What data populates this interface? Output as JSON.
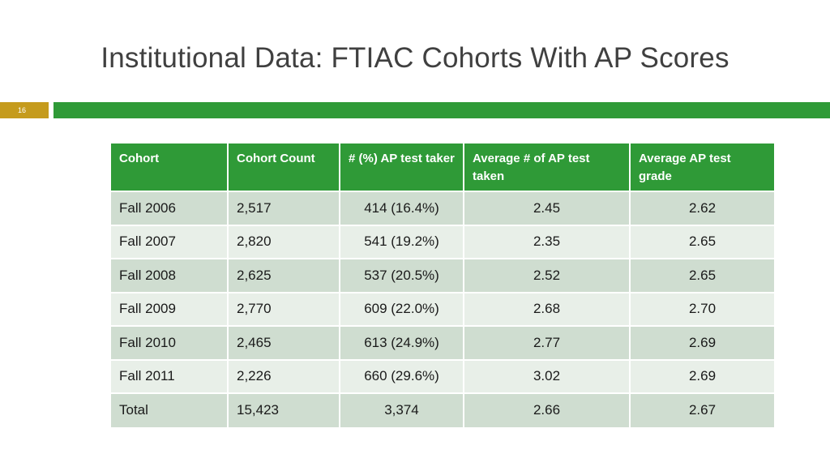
{
  "slide": {
    "title": "Institutional Data: FTIAC Cohorts With AP Scores",
    "slide_number": "16",
    "accent_green": "#2f9a37",
    "accent_gold": "#c59b1d"
  },
  "table": {
    "headers": [
      "Cohort",
      "Cohort Count",
      "#  (%) AP test taker",
      "Average # of AP test taken",
      "Average AP test grade"
    ],
    "rows": [
      [
        "Fall 2006",
        "2,517",
        "414 (16.4%)",
        "2.45",
        "2.62"
      ],
      [
        "Fall 2007",
        "2,820",
        "541 (19.2%)",
        "2.35",
        "2.65"
      ],
      [
        "Fall 2008",
        "2,625",
        "537 (20.5%)",
        "2.52",
        "2.65"
      ],
      [
        "Fall 2009",
        "2,770",
        "609 (22.0%)",
        "2.68",
        "2.70"
      ],
      [
        "Fall 2010",
        "2,465",
        "613 (24.9%)",
        "2.77",
        "2.69"
      ],
      [
        "Fall 2011",
        "2,226",
        "660 (29.6%)",
        "3.02",
        "2.69"
      ],
      [
        "Total",
        "15,423",
        "3,374",
        "2.66",
        "2.67"
      ]
    ]
  }
}
